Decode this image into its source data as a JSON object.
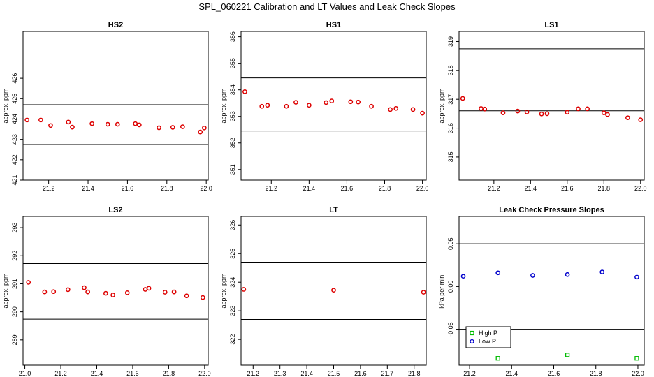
{
  "title": "SPL_060221  Calibration and LT Values and Leak Check Slopes",
  "chart_data": [
    {
      "type": "scatter",
      "title": "HS2",
      "ylabel": "approx. ppm",
      "xlim": [
        21.07,
        22.01
      ],
      "ylim": [
        421,
        428.3
      ],
      "xticks": [
        21.2,
        21.4,
        21.6,
        21.8,
        22.0
      ],
      "xtick_labels": [
        "21.2",
        "21.4",
        "21.6",
        "21.8",
        "22.0"
      ],
      "yticks": [
        421,
        422,
        423,
        424,
        425,
        426
      ],
      "ytick_labels": [
        "421",
        "422",
        "423",
        "424",
        "425",
        "426"
      ],
      "hlines": [
        424.7,
        422.75
      ],
      "series": [
        {
          "color": "#dd0000",
          "x": [
            21.09,
            21.16,
            21.21,
            21.3,
            21.32,
            21.42,
            21.5,
            21.55,
            21.64,
            21.66,
            21.76,
            21.83,
            21.88,
            21.97,
            21.99
          ],
          "y": [
            423.95,
            423.95,
            423.68,
            423.85,
            423.6,
            423.77,
            423.74,
            423.74,
            423.77,
            423.71,
            423.57,
            423.59,
            423.62,
            423.36,
            423.56
          ]
        }
      ]
    },
    {
      "type": "scatter",
      "title": "HS1",
      "ylabel": "approx. ppm",
      "xlim": [
        21.04,
        22.02
      ],
      "ylim": [
        350.6,
        356.2
      ],
      "xticks": [
        21.2,
        21.4,
        21.6,
        21.8,
        22.0
      ],
      "xtick_labels": [
        "21.2",
        "21.4",
        "21.6",
        "21.8",
        "22.0"
      ],
      "yticks": [
        351,
        352,
        353,
        354,
        355,
        356
      ],
      "ytick_labels": [
        "351",
        "352",
        "353",
        "354",
        "355",
        "356"
      ],
      "hlines": [
        354.45,
        352.45
      ],
      "series": [
        {
          "color": "#dd0000",
          "x": [
            21.06,
            21.15,
            21.18,
            21.28,
            21.33,
            21.4,
            21.49,
            21.52,
            21.62,
            21.66,
            21.73,
            21.83,
            21.86,
            21.95,
            22.0
          ],
          "y": [
            353.93,
            353.38,
            353.42,
            353.38,
            353.53,
            353.42,
            353.52,
            353.58,
            353.55,
            353.54,
            353.38,
            353.26,
            353.3,
            353.26,
            353.12
          ]
        }
      ]
    },
    {
      "type": "scatter",
      "title": "LS1",
      "ylabel": "approx. ppm",
      "xlim": [
        21.01,
        22.02
      ],
      "ylim": [
        314.2,
        319.35
      ],
      "xticks": [
        21.2,
        21.4,
        21.6,
        21.8,
        22.0
      ],
      "xtick_labels": [
        "21.2",
        "21.4",
        "21.6",
        "21.8",
        "22.0"
      ],
      "yticks": [
        314,
        315,
        316,
        317,
        318,
        319
      ],
      "ytick_labels": [
        "314",
        "315",
        "316",
        "317",
        "318",
        "319"
      ],
      "hlines": [
        318.75,
        316.6
      ],
      "series": [
        {
          "color": "#dd0000",
          "x": [
            21.03,
            21.13,
            21.15,
            21.25,
            21.33,
            21.38,
            21.46,
            21.49,
            21.6,
            21.66,
            21.71,
            21.8,
            21.82,
            21.93,
            22.0
          ],
          "y": [
            317.03,
            316.68,
            316.66,
            316.53,
            316.59,
            316.56,
            316.49,
            316.5,
            316.55,
            316.67,
            316.67,
            316.53,
            316.47,
            316.36,
            316.29
          ]
        }
      ]
    },
    {
      "type": "scatter",
      "title": "LS2",
      "ylabel": "approx. ppm",
      "xlim": [
        20.99,
        22.02
      ],
      "ylim": [
        288.1,
        293.4
      ],
      "xticks": [
        21.0,
        21.2,
        21.4,
        21.6,
        21.8,
        22.0
      ],
      "xtick_labels": [
        "21.0",
        "21.2",
        "21.4",
        "21.6",
        "21.8",
        "22.0"
      ],
      "yticks": [
        289,
        290,
        291,
        292,
        293
      ],
      "ytick_labels": [
        "289",
        "290",
        "291",
        "292",
        "293"
      ],
      "hlines": [
        291.72,
        289.74
      ],
      "series": [
        {
          "color": "#dd0000",
          "x": [
            21.02,
            21.11,
            21.16,
            21.24,
            21.33,
            21.35,
            21.45,
            21.49,
            21.57,
            21.67,
            21.69,
            21.78,
            21.83,
            21.9,
            21.99
          ],
          "y": [
            291.05,
            290.71,
            290.72,
            290.79,
            290.86,
            290.71,
            290.66,
            290.6,
            290.68,
            290.8,
            290.84,
            290.7,
            290.71,
            290.57,
            290.51
          ]
        }
      ]
    },
    {
      "type": "scatter",
      "title": "LT",
      "ylabel": "approx. ppm",
      "xlim": [
        21.155,
        21.845
      ],
      "ylim": [
        321.1,
        326.3
      ],
      "xticks": [
        21.2,
        21.3,
        21.4,
        21.5,
        21.6,
        21.7,
        21.8
      ],
      "xtick_labels": [
        "21.2",
        "21.3",
        "21.4",
        "21.5",
        "21.6",
        "21.7",
        "21.8"
      ],
      "yticks": [
        322,
        323,
        324,
        325,
        326
      ],
      "ytick_labels": [
        "322",
        "323",
        "324",
        "325",
        "326"
      ],
      "hlines": [
        324.7,
        322.7
      ],
      "series": [
        {
          "color": "#dd0000",
          "x": [
            21.165,
            21.5,
            21.835
          ],
          "y": [
            323.75,
            323.72,
            323.65
          ]
        }
      ]
    },
    {
      "type": "scatter",
      "title": "Leak Check Pressure Slopes",
      "ylabel": "kPa per min.",
      "xlim": [
        21.15,
        22.03
      ],
      "ylim": [
        -0.092,
        0.082
      ],
      "xticks": [
        21.2,
        21.4,
        21.6,
        21.8,
        22.0
      ],
      "xtick_labels": [
        "21.2",
        "21.4",
        "21.6",
        "21.8",
        "22.0"
      ],
      "yticks": [
        -0.05,
        0.0,
        0.05
      ],
      "ytick_labels": [
        "-0.05",
        "0.00",
        "0.05"
      ],
      "hlines": [
        0.05,
        -0.05
      ],
      "legend": {
        "position": "bottom-left",
        "entries": [
          "High P",
          "Low P"
        ]
      },
      "series": [
        {
          "name": "High P",
          "color": "#00bb00",
          "marker": "square",
          "x": [
            21.335,
            21.665,
            21.995
          ],
          "y": [
            -0.084,
            -0.08,
            -0.084
          ]
        },
        {
          "name": "Low P",
          "color": "#0000cc",
          "marker": "circle",
          "x": [
            21.17,
            21.335,
            21.5,
            21.665,
            21.83,
            21.995
          ],
          "y": [
            0.012,
            0.016,
            0.013,
            0.014,
            0.017,
            0.011
          ]
        }
      ]
    }
  ]
}
